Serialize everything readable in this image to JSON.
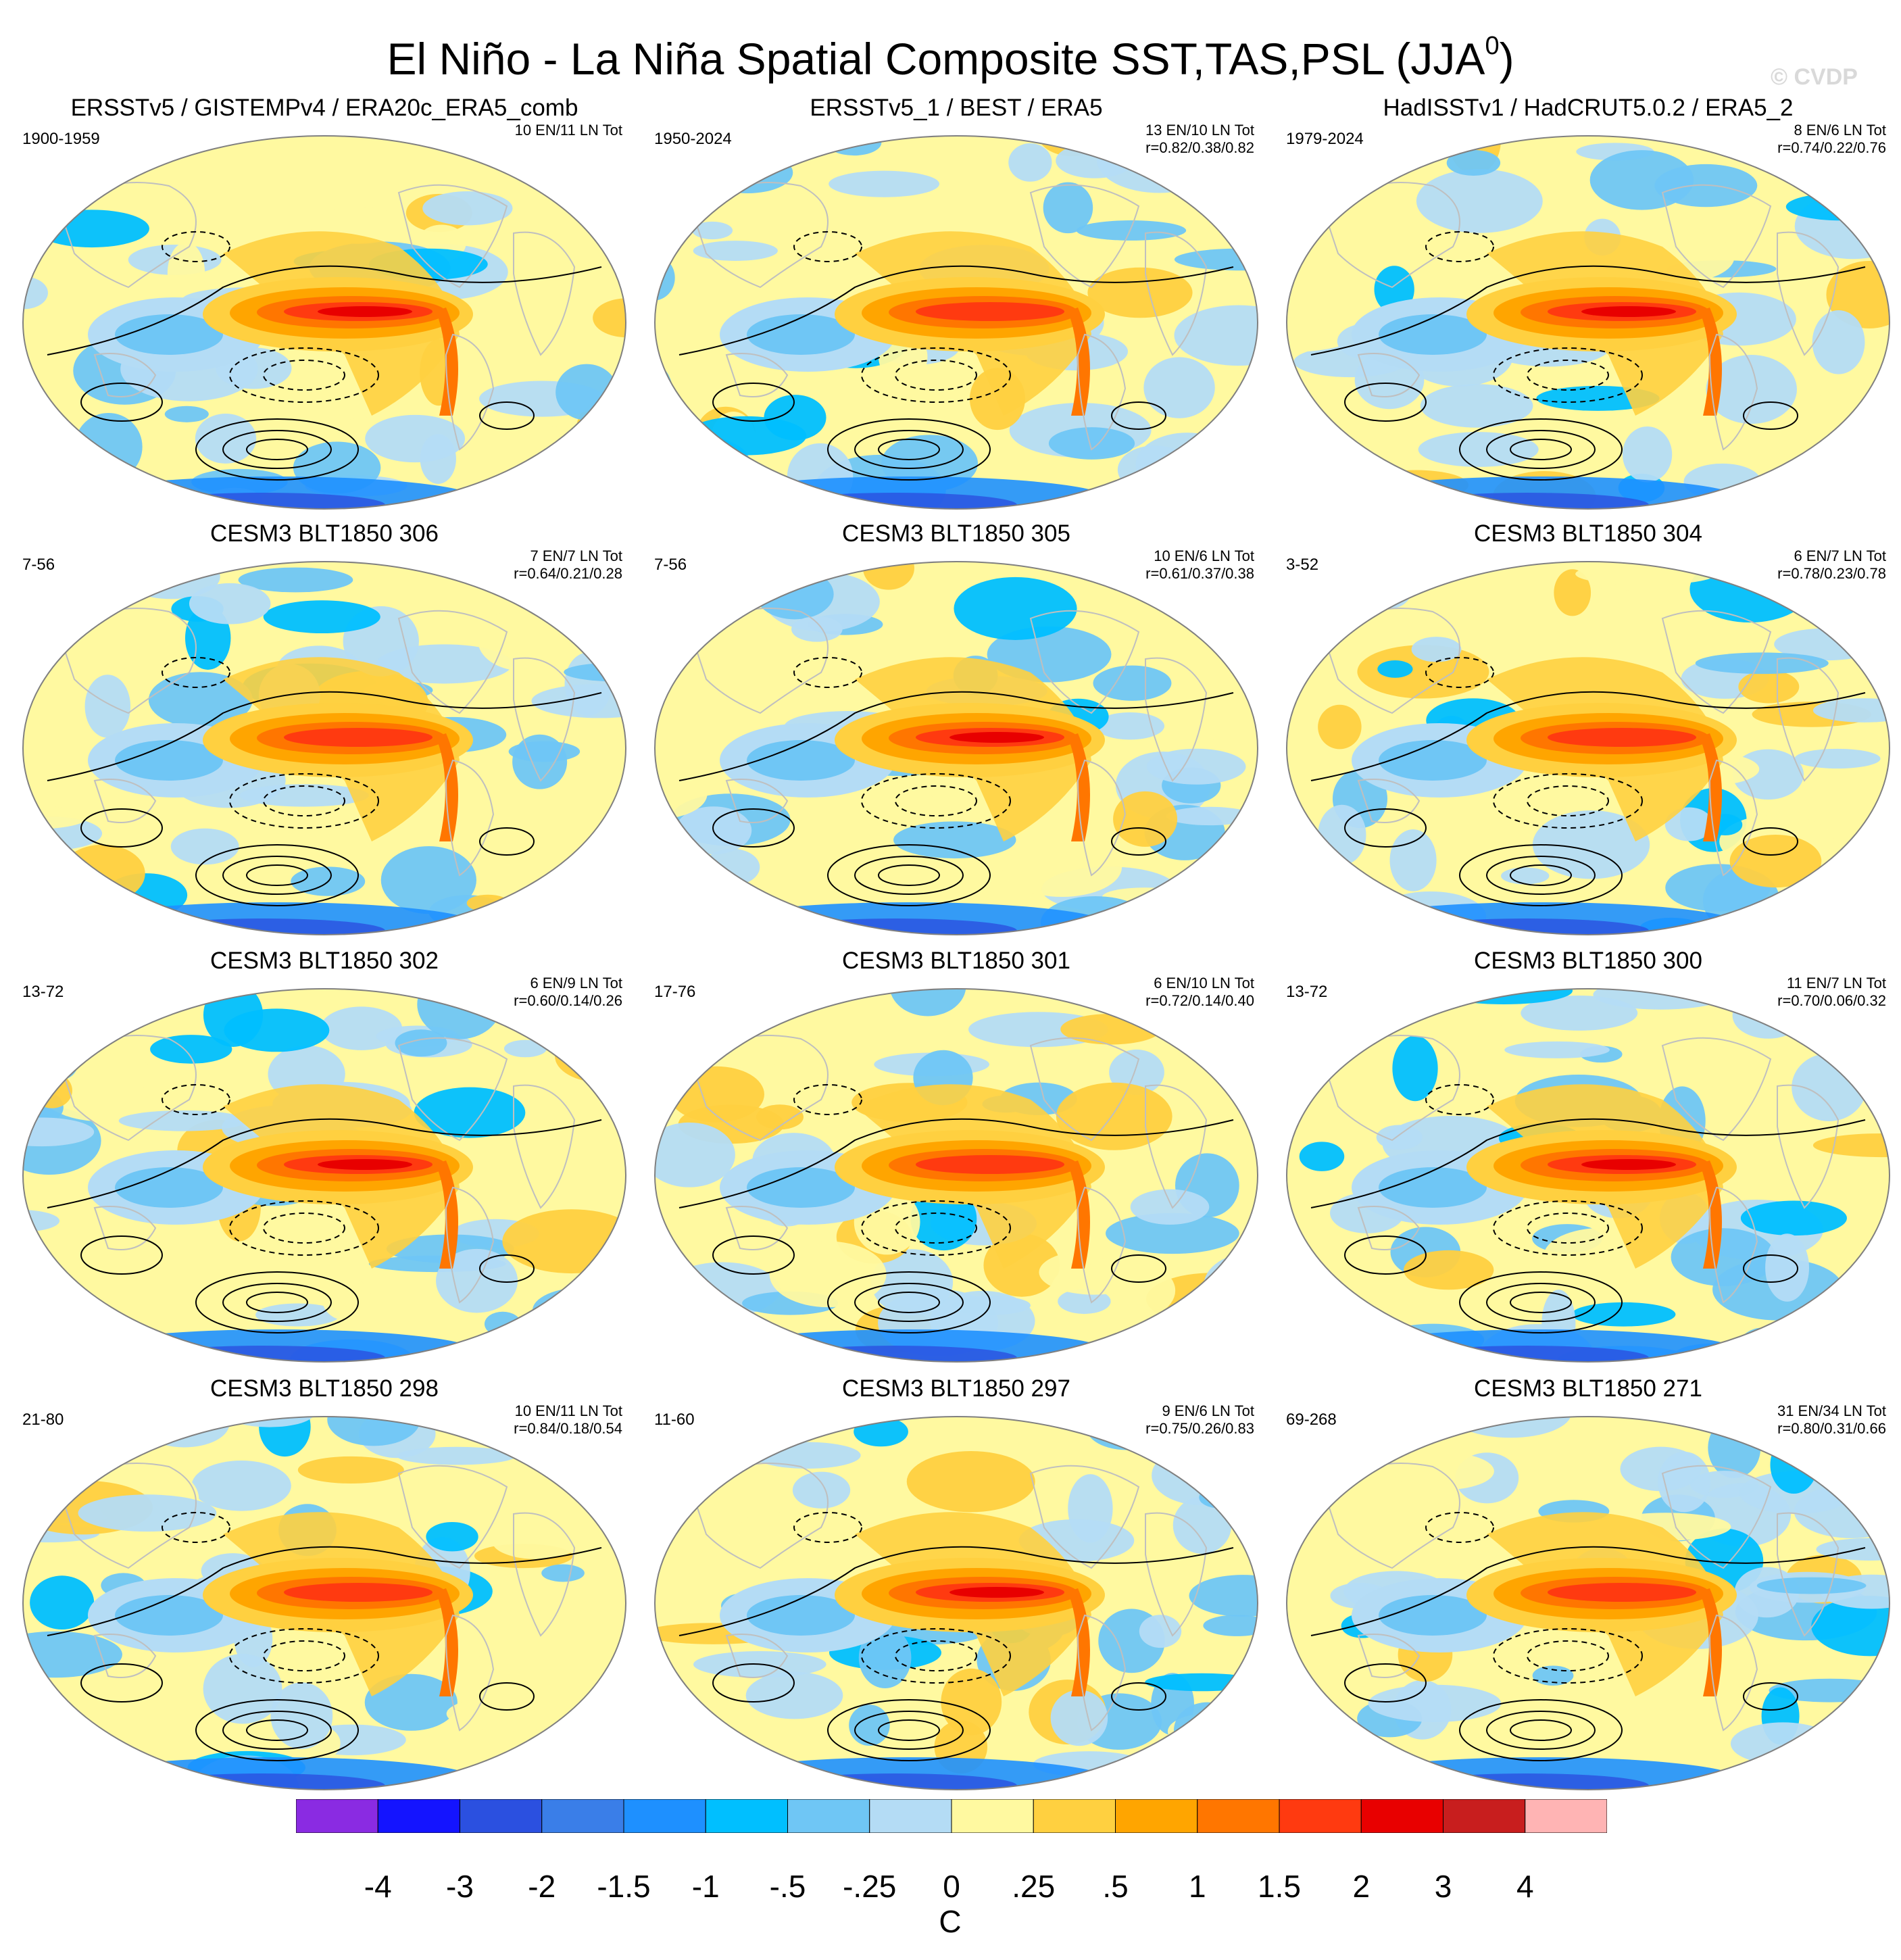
{
  "figure": {
    "title_main": "El Niño - La Niña Spatial Composite SST,TAS,PSL (JJA",
    "title_sup": "0",
    "title_end": ")",
    "watermark": "© CVDP"
  },
  "panels": [
    {
      "title": "ERSSTv5 / GISTEMPv4 / ERA20c_ERA5_comb",
      "period": "1900-1959",
      "stats1": "10 EN/11 LN Tot",
      "stats2": "",
      "style": 0
    },
    {
      "title": "ERSSTv5_1 / BEST / ERA5",
      "period": "1950-2024",
      "stats1": "13 EN/10 LN Tot",
      "stats2": "r=0.82/0.38/0.82",
      "style": 1
    },
    {
      "title": "HadISSTv1 / HadCRUT5.0.2 / ERA5_2",
      "period": "1979-2024",
      "stats1": "8 EN/6 LN Tot",
      "stats2": "r=0.74/0.22/0.76",
      "style": 2
    },
    {
      "title": "CESM3 BLT1850 306",
      "period": "7-56",
      "stats1": "7 EN/7 LN Tot",
      "stats2": "r=0.64/0.21/0.28",
      "style": 3
    },
    {
      "title": "CESM3 BLT1850 305",
      "period": "7-56",
      "stats1": "10 EN/6 LN Tot",
      "stats2": "r=0.61/0.37/0.38",
      "style": 4
    },
    {
      "title": "CESM3 BLT1850 304",
      "period": "3-52",
      "stats1": "6 EN/7 LN Tot",
      "stats2": "r=0.78/0.23/0.78",
      "style": 5
    },
    {
      "title": "CESM3 BLT1850 302",
      "period": "13-72",
      "stats1": "6 EN/9 LN Tot",
      "stats2": "r=0.60/0.14/0.26",
      "style": 6
    },
    {
      "title": "CESM3 BLT1850 301",
      "period": "17-76",
      "stats1": "6 EN/10 LN Tot",
      "stats2": "r=0.72/0.14/0.40",
      "style": 7
    },
    {
      "title": "CESM3 BLT1850 300",
      "period": "13-72",
      "stats1": "11 EN/7 LN Tot",
      "stats2": "r=0.70/0.06/0.32",
      "style": 8
    },
    {
      "title": "CESM3 BLT1850 298",
      "period": "21-80",
      "stats1": "10 EN/11 LN Tot",
      "stats2": "r=0.84/0.18/0.54",
      "style": 9
    },
    {
      "title": "CESM3 BLT1850 297",
      "period": "11-60",
      "stats1": "9 EN/6 LN Tot",
      "stats2": "r=0.75/0.26/0.83",
      "style": 10
    },
    {
      "title": "CESM3 BLT1850 271",
      "period": "69-268",
      "stats1": "31 EN/34 LN Tot",
      "stats2": "r=0.80/0.31/0.66",
      "style": 11
    }
  ],
  "colorbar": {
    "colors": [
      "#8a2be2",
      "#1414ff",
      "#2b50e0",
      "#3a7ee8",
      "#1e90ff",
      "#00bfff",
      "#6fc6f5",
      "#b4dcf5",
      "#fff9a0",
      "#ffd040",
      "#ffa500",
      "#ff7600",
      "#ff3a10",
      "#e80000",
      "#c81e1e",
      "#ffb4b4"
    ],
    "labels": [
      "-4",
      "-3",
      "-2",
      "-1.5",
      "-1",
      "-.5",
      "-.25",
      "0",
      ".25",
      ".5",
      "1",
      "1.5",
      "2",
      "3",
      "4"
    ],
    "unit": "C"
  }
}
